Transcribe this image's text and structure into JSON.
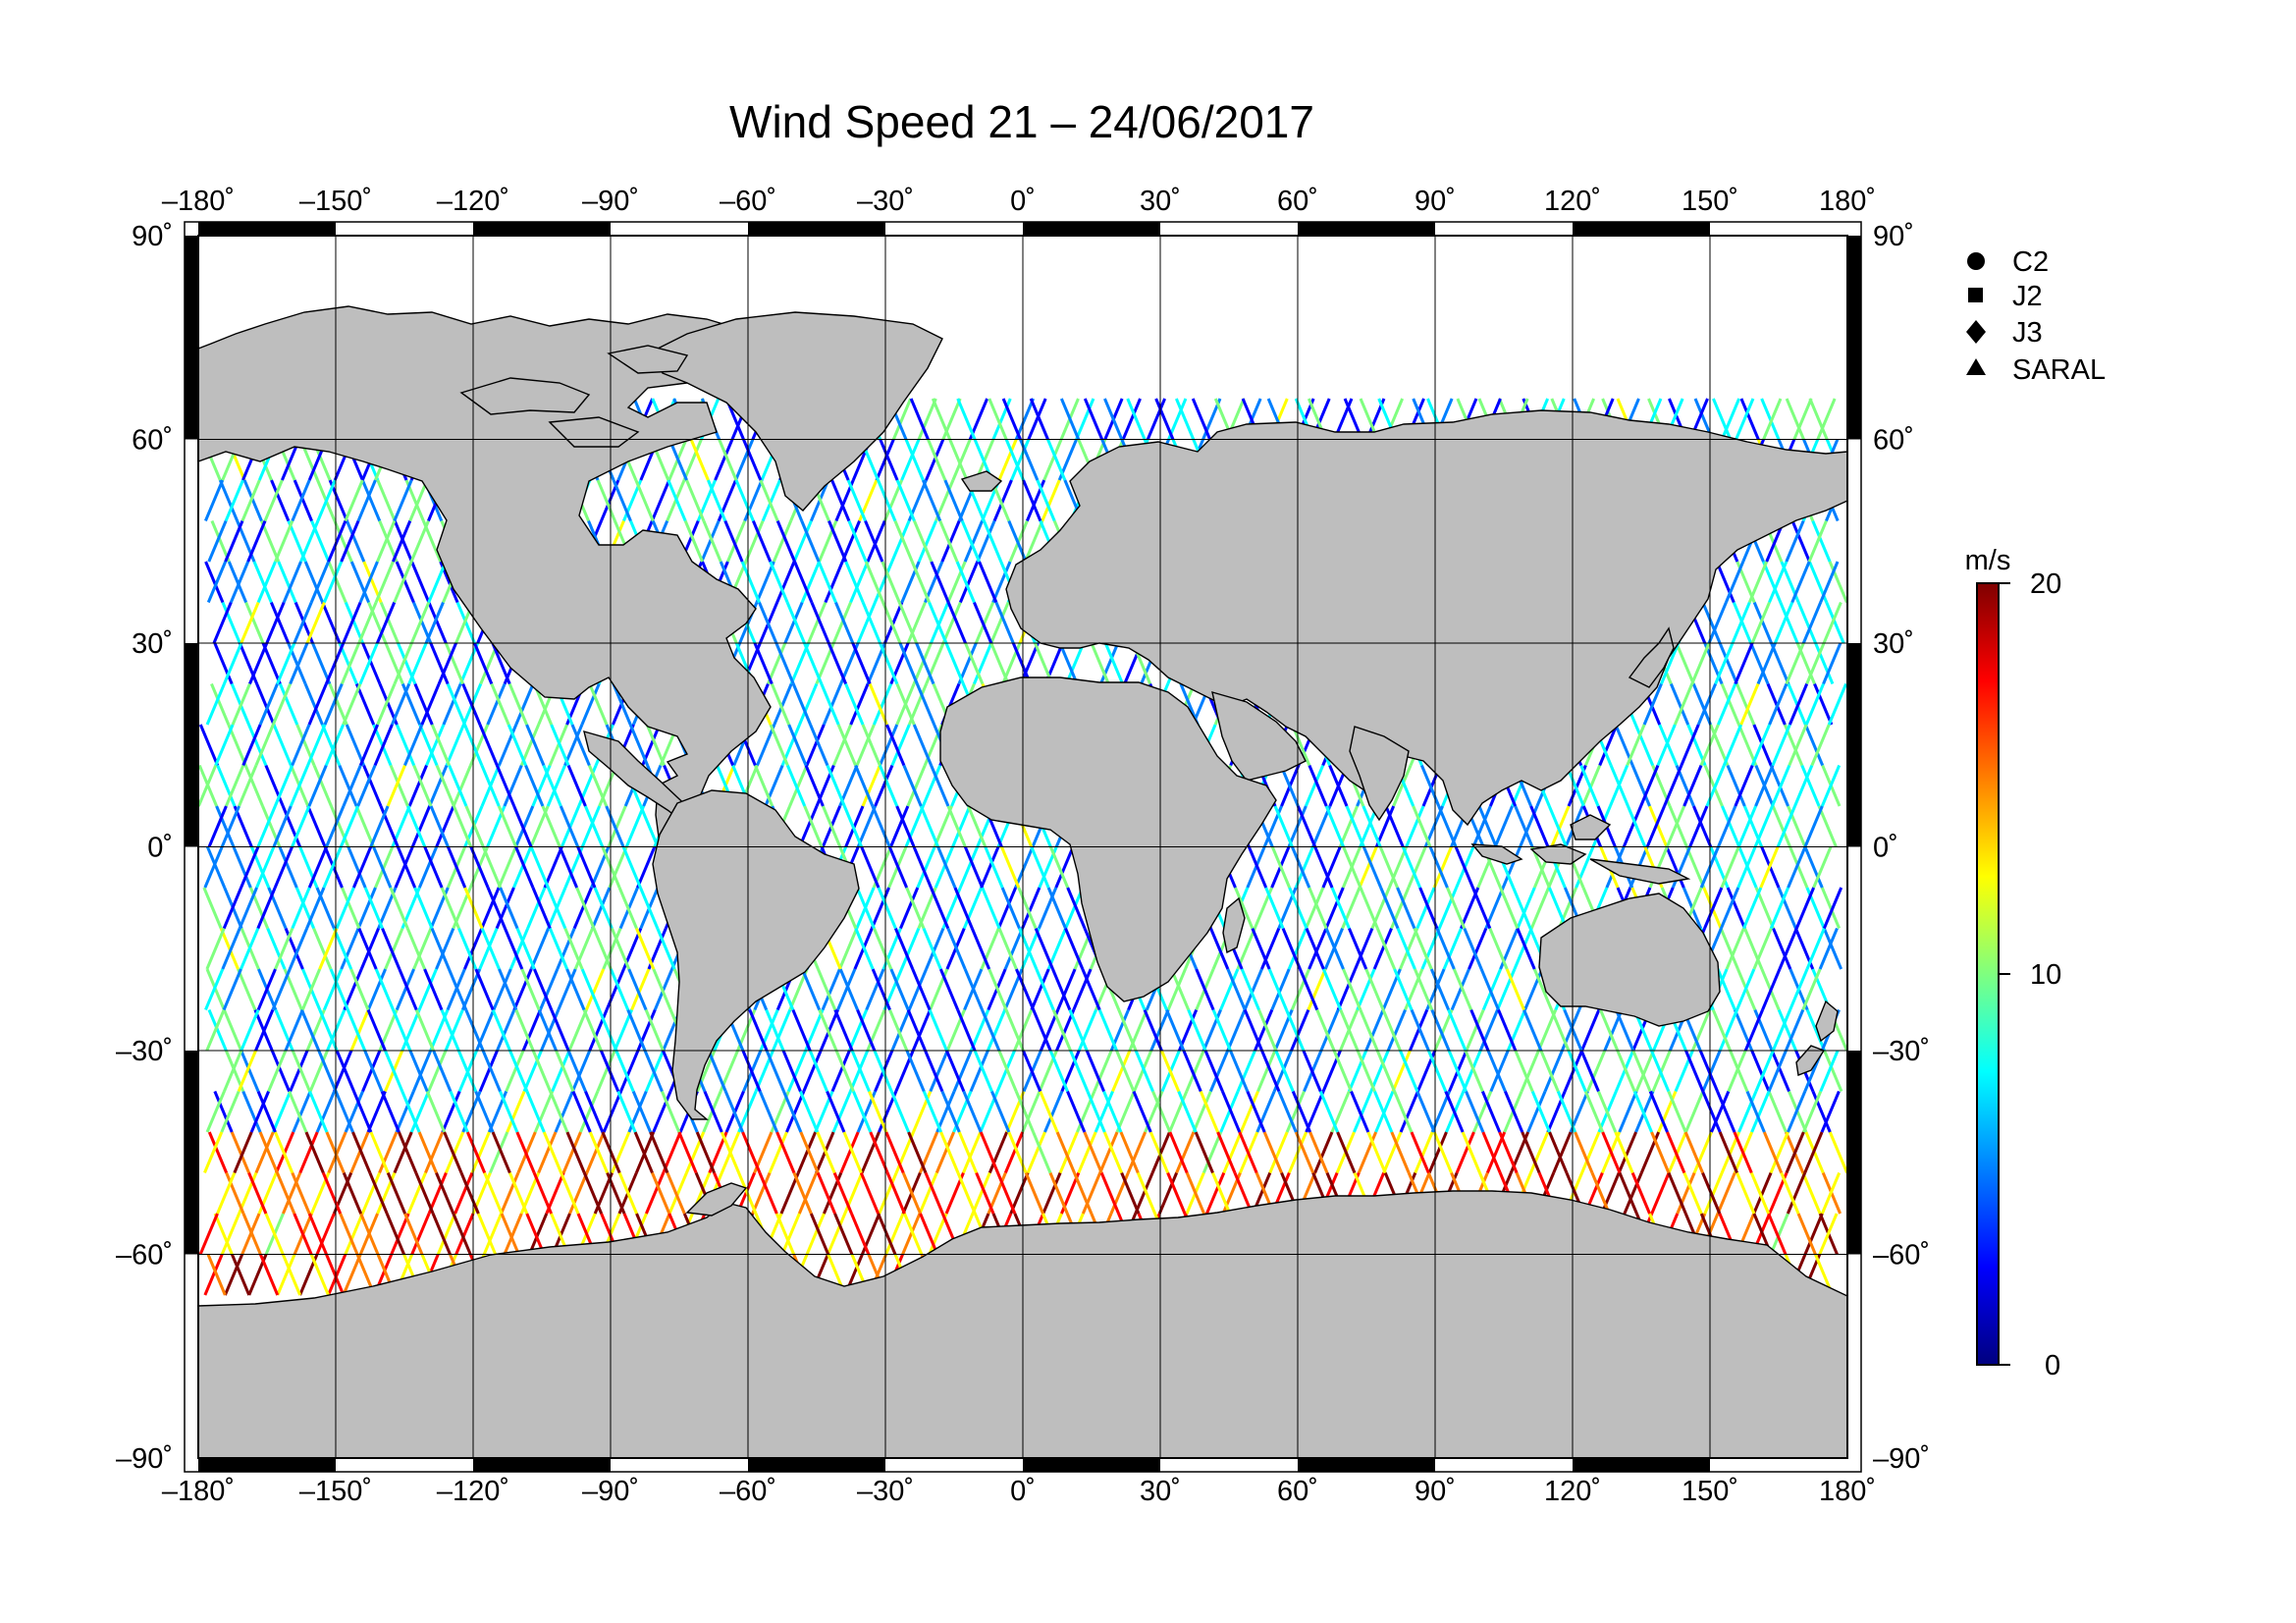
{
  "title": "Wind Speed 21 – 24/06/2017",
  "map": {
    "projection": "equirectangular",
    "lon_range": [
      -180,
      180
    ],
    "lat_range": [
      -90,
      90
    ],
    "land_color": "#bebebe",
    "ocean_color": "#ffffff",
    "grid": true,
    "lon_ticks": [
      -180,
      -150,
      -120,
      -90,
      -60,
      -30,
      0,
      30,
      60,
      90,
      120,
      150,
      180
    ],
    "lat_ticks": [
      90,
      60,
      30,
      0,
      -30,
      -60,
      -90
    ],
    "lon_labels": [
      "–180˚",
      "–150˚",
      "–120˚",
      "–90˚",
      "–60˚",
      "–30˚",
      "0˚",
      "30˚",
      "60˚",
      "90˚",
      "120˚",
      "150˚",
      "180˚"
    ],
    "lat_labels_left": [
      "90˚",
      "60˚",
      "30˚",
      "0˚",
      "–30˚",
      "–60˚",
      "–90˚"
    ],
    "lat_labels_right": [
      "90˚",
      "60˚",
      "30˚",
      "0˚",
      "–30˚",
      "–60˚",
      "–90˚"
    ]
  },
  "legend": {
    "items": [
      {
        "symbol": "circle",
        "label": "C2"
      },
      {
        "symbol": "square",
        "label": "J2"
      },
      {
        "symbol": "diamond",
        "label": "J3"
      },
      {
        "symbol": "triangle",
        "label": "SARAL"
      }
    ]
  },
  "colorbar": {
    "unit": "m/s",
    "min": 0,
    "max": 20,
    "ticks": [
      "20",
      "10",
      "0"
    ],
    "colors": [
      "#00007f",
      "#0000ff",
      "#007fff",
      "#00ffff",
      "#7fff7f",
      "#ffff00",
      "#ff7f00",
      "#ff0000",
      "#7f0000"
    ]
  },
  "chart_data": {
    "type": "map",
    "variable": "Wind Speed",
    "unit": "m/s",
    "satellites": [
      "C2",
      "J2",
      "J3",
      "SARAL"
    ],
    "value_range": [
      0,
      20
    ]
  }
}
